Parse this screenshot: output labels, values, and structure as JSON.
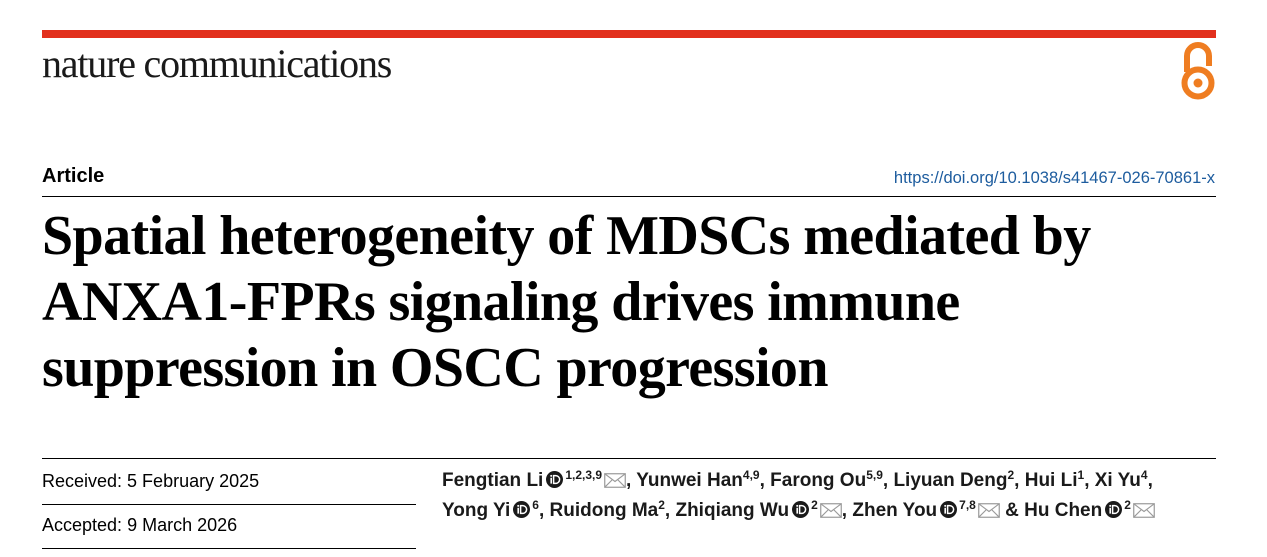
{
  "colors": {
    "brand_bar": "#e2301d",
    "open_access": "#ef7d21",
    "doi_link": "#1d5c9e",
    "icon_gray": "#9a9a9a",
    "orcid_dark": "#1a1a1a"
  },
  "header": {
    "journal_name": "nature communications",
    "open_access_icon": "open-access-icon"
  },
  "article": {
    "type": "Article",
    "doi": "https://doi.org/10.1038/s41467-026-70861-x",
    "title_lines": [
      "Spatial heterogeneity of MDSCs mediated by",
      "ANXA1-FPRs signaling drives immune",
      "suppression in OSCC progression"
    ]
  },
  "dates": {
    "received_label": "Received:",
    "received": "5 February 2025",
    "accepted_label": "Accepted:",
    "accepted": "9 March 2026"
  },
  "icons": {
    "orcid": "orcid-icon",
    "correspondence": "envelope-icon"
  },
  "authors": [
    {
      "name": "Fengtian Li",
      "aff": "1,2,3,9",
      "orcid": true,
      "corresponding": true,
      "sep": ", "
    },
    {
      "name": "Yunwei Han",
      "aff": "4,9",
      "orcid": false,
      "corresponding": false,
      "sep": ", "
    },
    {
      "name": "Farong Ou",
      "aff": "5,9",
      "orcid": false,
      "corresponding": false,
      "sep": ", "
    },
    {
      "name": "Liyuan Deng",
      "aff": "2",
      "orcid": false,
      "corresponding": false,
      "sep": ", "
    },
    {
      "name": "Hui Li",
      "aff": "1",
      "orcid": false,
      "corresponding": false,
      "sep": ", "
    },
    {
      "name": "Xi Yu",
      "aff": "4",
      "orcid": false,
      "corresponding": false,
      "sep": ","
    },
    {
      "name": "Yong Yi",
      "aff": "6",
      "orcid": true,
      "corresponding": false,
      "sep": ", "
    },
    {
      "name": "Ruidong Ma",
      "aff": "2",
      "orcid": false,
      "corresponding": false,
      "sep": ", "
    },
    {
      "name": "Zhiqiang Wu",
      "aff": "2",
      "orcid": true,
      "corresponding": true,
      "sep": ", "
    },
    {
      "name": "Zhen You",
      "aff": "7,8",
      "orcid": true,
      "corresponding": true,
      "sep": " & "
    },
    {
      "name": "Hu Chen",
      "aff": "2",
      "orcid": true,
      "corresponding": true,
      "sep": ""
    }
  ]
}
